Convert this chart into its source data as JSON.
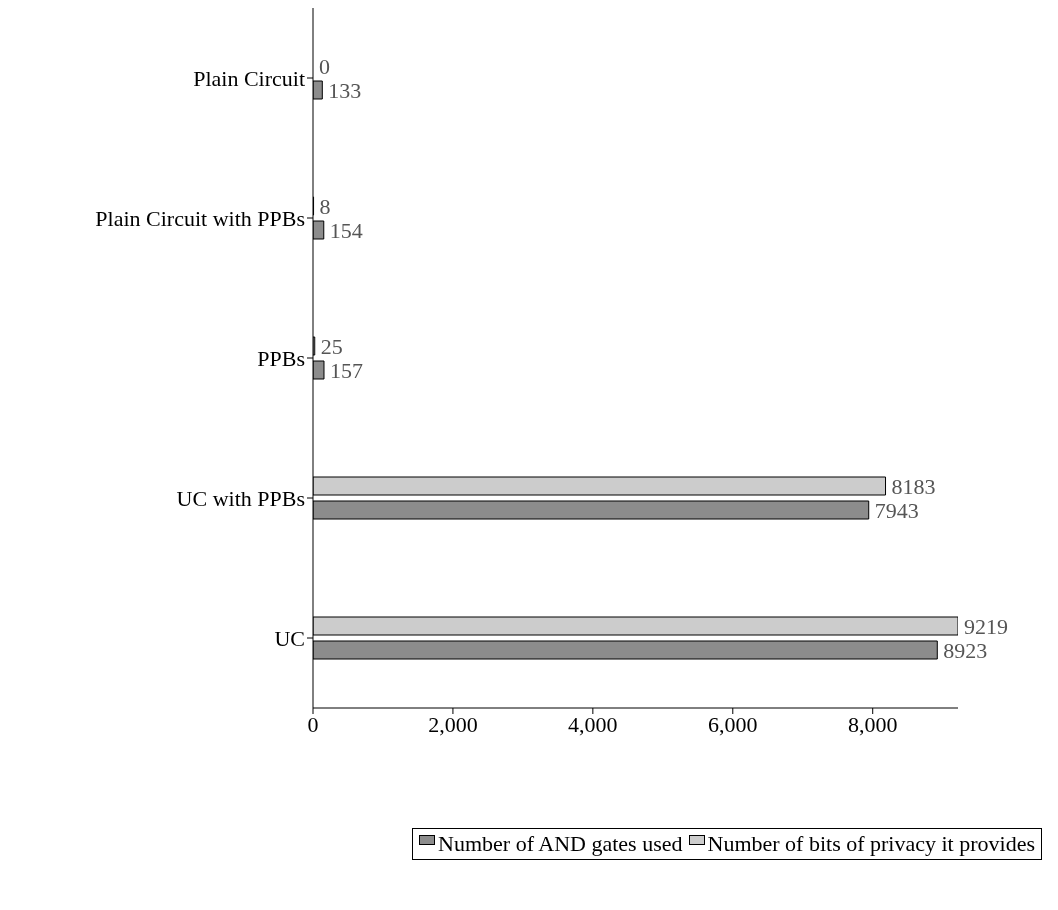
{
  "chart_data": {
    "type": "bar",
    "orientation": "horizontal",
    "categories": [
      "Plain Circuit",
      "Plain Circuit with PPBs",
      "PPBs",
      "UC with PPBs",
      "UC"
    ],
    "series": [
      {
        "name": "Number of AND gates used",
        "color": "#8c8c8c",
        "values": [
          133,
          154,
          157,
          7943,
          8923
        ]
      },
      {
        "name": "Number of bits of privacy it provides",
        "color": "#cccccc",
        "values": [
          0,
          8,
          25,
          8183,
          9219
        ]
      }
    ],
    "xlim": [
      0,
      9219
    ],
    "xticks": [
      0,
      {
        "value": 2000,
        "label": "2,000"
      },
      {
        "value": 4000,
        "label": "4,000"
      },
      {
        "value": 6000,
        "label": "6,000"
      },
      {
        "value": 8000,
        "label": "8,000"
      }
    ],
    "data_labels": true,
    "grid": false,
    "legend": "bottom"
  }
}
